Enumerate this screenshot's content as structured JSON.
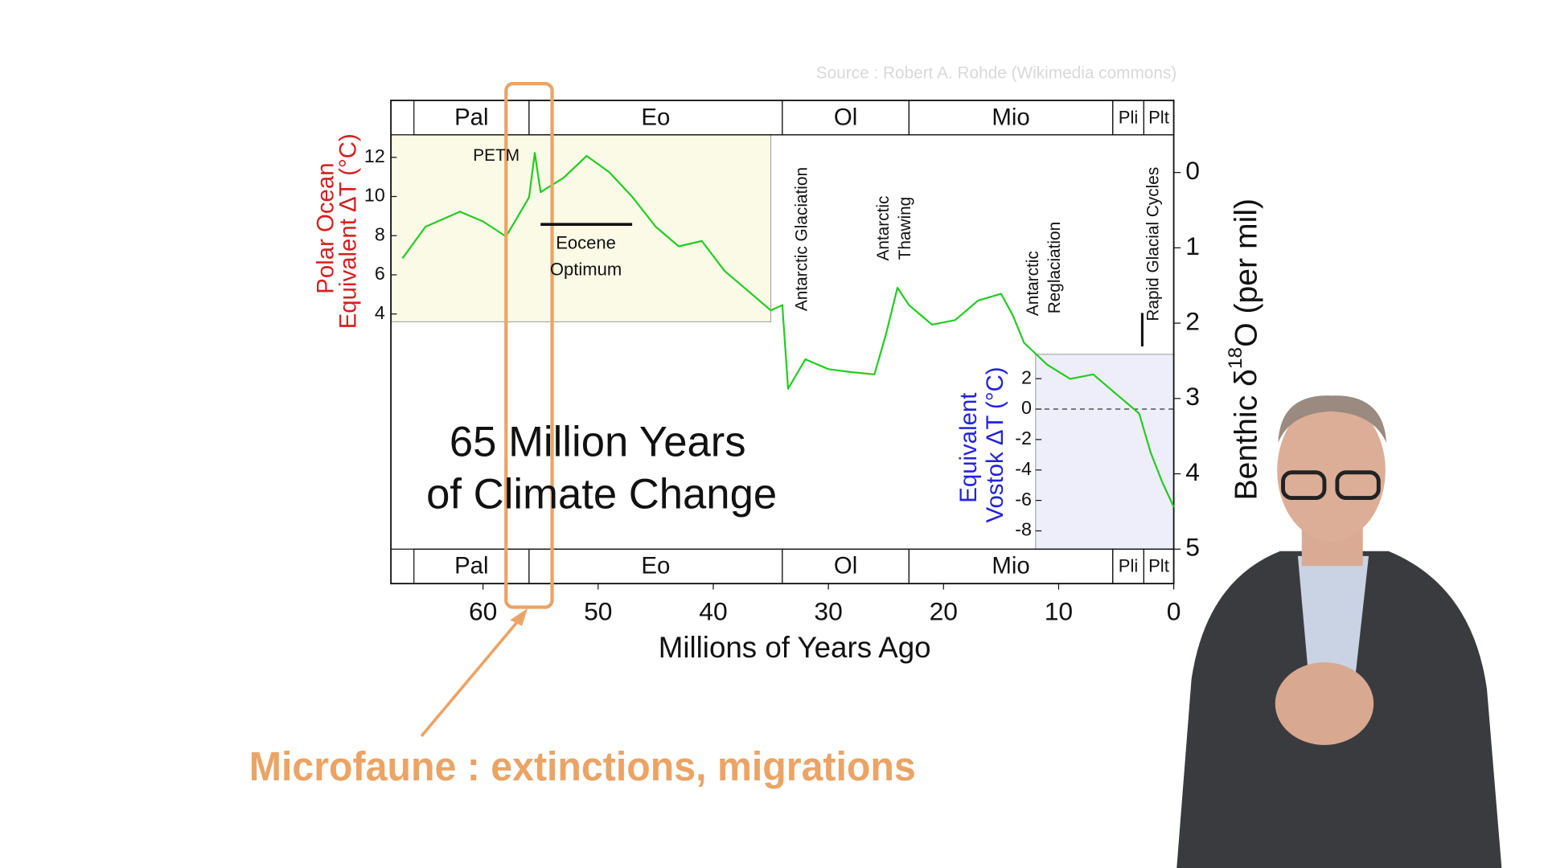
{
  "source": "Source : Robert A. Rohde (Wikimedia commons)",
  "caption": "Microfaune : extinctions, migrations",
  "chart_data": {
    "type": "line",
    "title": [
      "65 Million Years",
      "of Climate Change"
    ],
    "x_label": "Millions of Years Ago",
    "y_label": [
      "Benthic δ",
      "18",
      "O (per mil)"
    ],
    "xlim": [
      68,
      0
    ],
    "xticks": [
      60,
      50,
      40,
      30,
      20,
      10,
      0
    ],
    "ylim": [
      5,
      -0.5
    ],
    "yticks": [
      0,
      1,
      2,
      3,
      4,
      5
    ],
    "series": [
      {
        "color": "#22cc22",
        "x": [
          67,
          65,
          62,
          60,
          58,
          56,
          55.5,
          55,
          53,
          51,
          49,
          47,
          45,
          43,
          41,
          39,
          37,
          35,
          34,
          33.5,
          32,
          30,
          28,
          26,
          25,
          24,
          23,
          21,
          19,
          17,
          15,
          14,
          13,
          11,
          9,
          7,
          5,
          3,
          2,
          1,
          0
        ],
        "values": [
          1.14,
          0.72,
          0.52,
          0.65,
          0.85,
          0.33,
          -0.26,
          0.26,
          0.07,
          -0.22,
          0,
          0.33,
          0.72,
          0.98,
          0.91,
          1.31,
          1.57,
          1.83,
          1.76,
          2.87,
          2.48,
          2.61,
          2.65,
          2.68,
          2.15,
          1.53,
          1.76,
          2.02,
          1.96,
          1.7,
          1.61,
          1.89,
          2.26,
          2.55,
          2.74,
          2.68,
          2.94,
          3.2,
          3.72,
          4.11,
          4.44
        ]
      }
    ],
    "epochs": [
      {
        "label": "Pal",
        "start": 66,
        "end": 56
      },
      {
        "label": "Eo",
        "start": 56,
        "end": 34
      },
      {
        "label": "Ol",
        "start": 34,
        "end": 23
      },
      {
        "label": "Mio",
        "start": 23,
        "end": 5.3
      },
      {
        "label": "Pli",
        "start": 5.3,
        "end": 2.6
      },
      {
        "label": "Plt",
        "start": 2.6,
        "end": 0
      }
    ],
    "left_panel": {
      "label": [
        "Polar Ocean",
        "Equivalent ΔT (°C)"
      ],
      "xlim": [
        68,
        35
      ],
      "ylim": [
        3.6,
        13.15
      ],
      "yticks": [
        4,
        6,
        8,
        10,
        12
      ]
    },
    "inset": {
      "label": [
        "Equivalent",
        "Vostok ΔT (°C)"
      ],
      "xlim": [
        12,
        0
      ],
      "ylim": [
        -9.2,
        3.6
      ],
      "yticks": [
        2,
        0,
        -2,
        -4,
        -6,
        -8
      ]
    },
    "annotations": {
      "petm": "PETM",
      "eocene_optimum": [
        "Eocene",
        "Optimum"
      ],
      "glaciation": "Antarctic Glaciation",
      "thawing": [
        "Antarctic",
        "Thawing"
      ],
      "reglaciation": [
        "Antarctic",
        "Reglaciation"
      ],
      "cycles": "Rapid Glacial Cycles"
    },
    "highlight": [
      58,
      54
    ]
  }
}
